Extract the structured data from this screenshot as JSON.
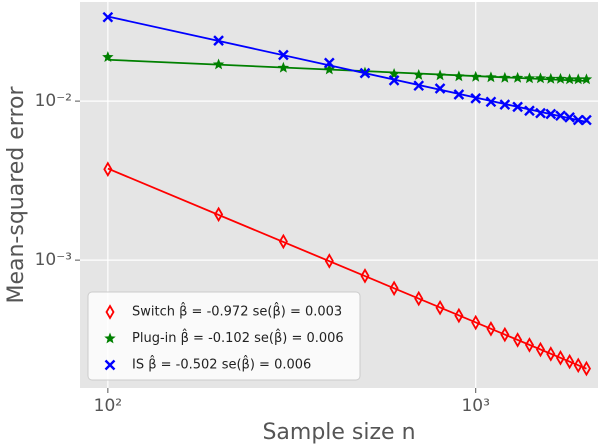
{
  "chart_data": {
    "type": "scatter",
    "xlabel": "Sample size n",
    "ylabel": "Mean-squared error",
    "xlog": true,
    "ylog": true,
    "grid": true,
    "legend": "lower left",
    "fit_lines": true,
    "x": [
      100,
      200,
      300,
      400,
      500,
      600,
      700,
      800,
      900,
      1000,
      1100,
      1200,
      1300,
      1400,
      1500,
      1600,
      1700,
      1800,
      1900,
      2000
    ],
    "series": [
      {
        "name": "Switch β̂ = -0.972 se(β̂) = 0.003",
        "color": "#ff0000",
        "marker": "thin_diamond",
        "values": [
          0.00373,
          0.00194,
          0.00131,
          0.000988,
          0.000796,
          0.000665,
          0.000573,
          0.000502,
          0.000448,
          0.000405,
          0.00037,
          0.00034,
          0.000315,
          0.000293,
          0.000274,
          0.000257,
          0.000243,
          0.00023,
          0.000218,
          0.000208
        ]
      },
      {
        "name": "Plug-in β̂ = -0.102 se(β̂) = 0.006",
        "color": "#008000",
        "marker": "star",
        "values": [
          0.0189,
          0.017,
          0.0162,
          0.0158,
          0.0151,
          0.0148,
          0.0146,
          0.0145,
          0.0143,
          0.0142,
          0.0141,
          0.014,
          0.014,
          0.0139,
          0.0139,
          0.0138,
          0.0138,
          0.0137,
          0.0137,
          0.0137
        ]
      },
      {
        "name": "IS β̂ = -0.502 se(β̂) = 0.006",
        "color": "#0000ff",
        "marker": "x",
        "values": [
          0.0337,
          0.024,
          0.0195,
          0.0174,
          0.015,
          0.0135,
          0.0125,
          0.012,
          0.011,
          0.0104,
          0.0099,
          0.0095,
          0.0092,
          0.0087,
          0.0084,
          0.0083,
          0.0081,
          0.0079,
          0.0076,
          0.0076
        ]
      }
    ],
    "xlim": [
      84,
      2150
    ],
    "ylim": [
      0.000157,
      0.042
    ],
    "xticks": [
      {
        "value": 100,
        "label": "10²"
      },
      {
        "value": 1000,
        "label": "10³"
      }
    ],
    "yticks": [
      {
        "value": 0.001,
        "label": "10⁻³"
      },
      {
        "value": 0.01,
        "label": "10⁻²"
      }
    ]
  }
}
